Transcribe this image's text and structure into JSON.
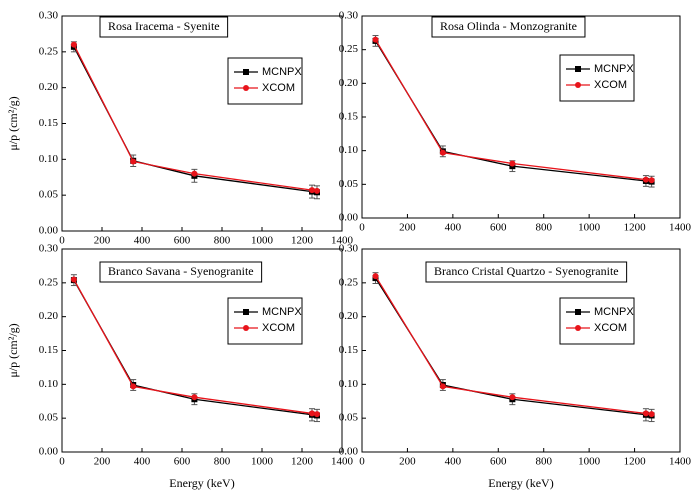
{
  "chart_data": [
    {
      "type": "line",
      "title": "Rosa Iracema - Syenite",
      "y_label": "μ/p (cm²/g)",
      "x": [
        59.5,
        356,
        662,
        1250,
        1275
      ],
      "series": [
        {
          "name": "MCNPX",
          "color": "#000000",
          "marker": "square",
          "values": [
            0.257,
            0.098,
            0.077,
            0.055,
            0.054
          ],
          "errors": [
            0.007,
            0.008,
            0.009,
            0.009,
            0.009
          ]
        },
        {
          "name": "XCOM",
          "color": "#e8141b",
          "marker": "circle",
          "values": [
            0.26,
            0.097,
            0.08,
            0.057,
            0.056
          ]
        }
      ],
      "xlim": [
        0,
        1400
      ],
      "xticks": [
        0,
        200,
        400,
        600,
        800,
        1000,
        1200,
        1400
      ],
      "ylim": [
        0,
        0.3
      ],
      "yticks": [
        {
          "value": 0,
          "label": "0.00"
        },
        {
          "value": 0.05,
          "label": "0.05"
        },
        {
          "value": 0.1,
          "label": "0.10"
        },
        {
          "value": 0.15,
          "label": "0.15"
        },
        {
          "value": 0.2,
          "label": "0.20"
        },
        {
          "value": 0.25,
          "label": "0.25"
        },
        {
          "value": 0.3,
          "label": "0.30"
        }
      ]
    },
    {
      "type": "line",
      "title": "Rosa Olinda - Monzogranite",
      "x": [
        59.5,
        356,
        662,
        1250,
        1275
      ],
      "series": [
        {
          "name": "MCNPX",
          "color": "#000000",
          "marker": "square",
          "values": [
            0.263,
            0.099,
            0.077,
            0.055,
            0.054
          ],
          "errors": [
            0.008,
            0.008,
            0.008,
            0.008,
            0.008
          ]
        },
        {
          "name": "XCOM",
          "color": "#e8141b",
          "marker": "circle",
          "values": [
            0.265,
            0.097,
            0.081,
            0.057,
            0.056
          ]
        }
      ],
      "xlim": [
        0,
        1400
      ],
      "xticks": [
        0,
        200,
        400,
        600,
        800,
        1000,
        1200,
        1400
      ],
      "ylim": [
        0,
        0.3
      ],
      "yticks": [
        {
          "value": 0,
          "label": "0.00"
        },
        {
          "value": 0.05,
          "label": "0.05"
        },
        {
          "value": 0.1,
          "label": "0.10"
        },
        {
          "value": 0.15,
          "label": "0.15"
        },
        {
          "value": 0.2,
          "label": "0.20"
        },
        {
          "value": 0.25,
          "label": "0.25"
        },
        {
          "value": 0.3,
          "label": "0.30"
        }
      ]
    },
    {
      "type": "line",
      "title": "Branco Savana - Syenogranite",
      "y_label": "μ/p (cm²/g)",
      "x_label": "Energy (keV)",
      "x": [
        59.5,
        356,
        662,
        1250,
        1275
      ],
      "series": [
        {
          "name": "MCNPX",
          "color": "#000000",
          "marker": "square",
          "values": [
            0.254,
            0.099,
            0.078,
            0.055,
            0.054
          ],
          "errors": [
            0.008,
            0.008,
            0.008,
            0.009,
            0.009
          ]
        },
        {
          "name": "XCOM",
          "color": "#e8141b",
          "marker": "circle",
          "values": [
            0.255,
            0.097,
            0.081,
            0.057,
            0.056
          ]
        }
      ],
      "xlim": [
        0,
        1400
      ],
      "xticks": [
        0,
        200,
        400,
        600,
        800,
        1000,
        1200,
        1400
      ],
      "ylim": [
        0,
        0.3
      ],
      "yticks": [
        {
          "value": 0,
          "label": "0.00"
        },
        {
          "value": 0.05,
          "label": "0.05"
        },
        {
          "value": 0.1,
          "label": "0.10"
        },
        {
          "value": 0.15,
          "label": "0.15"
        },
        {
          "value": 0.2,
          "label": "0.20"
        },
        {
          "value": 0.25,
          "label": "0.25"
        },
        {
          "value": 0.3,
          "label": "0.30"
        }
      ]
    },
    {
      "type": "line",
      "title": "Branco Cristal Quartzo - Syenogranite",
      "x_label": "Energy (keV)",
      "x": [
        59.5,
        356,
        662,
        1250,
        1275
      ],
      "series": [
        {
          "name": "MCNPX",
          "color": "#000000",
          "marker": "square",
          "values": [
            0.257,
            0.099,
            0.078,
            0.055,
            0.054
          ],
          "errors": [
            0.008,
            0.008,
            0.008,
            0.009,
            0.009
          ]
        },
        {
          "name": "XCOM",
          "color": "#e8141b",
          "marker": "circle",
          "values": [
            0.26,
            0.097,
            0.081,
            0.057,
            0.056
          ]
        }
      ],
      "xlim": [
        0,
        1400
      ],
      "xticks": [
        0,
        200,
        400,
        600,
        800,
        1000,
        1200,
        1400
      ],
      "ylim": [
        0,
        0.3
      ],
      "yticks": [
        {
          "value": 0,
          "label": "0.00"
        },
        {
          "value": 0.05,
          "label": "0.05"
        },
        {
          "value": 0.1,
          "label": "0.10"
        },
        {
          "value": 0.15,
          "label": "0.15"
        },
        {
          "value": 0.2,
          "label": "0.20"
        },
        {
          "value": 0.25,
          "label": "0.25"
        },
        {
          "value": 0.3,
          "label": "0.30"
        }
      ]
    }
  ]
}
